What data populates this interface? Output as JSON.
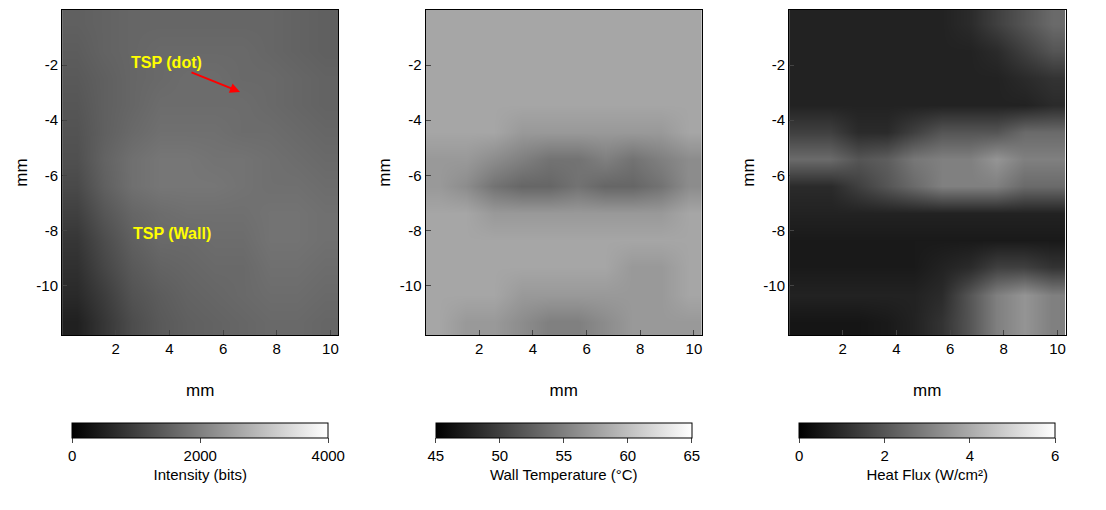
{
  "chart_data": [
    {
      "type": "heatmap",
      "color": "gray",
      "xlabel": "mm",
      "ylabel": "mm",
      "xlim": [
        0,
        10.3
      ],
      "xticks": [
        2,
        4,
        6,
        8,
        10
      ],
      "ylim": [
        -11.8,
        0
      ],
      "yticks": [
        -2,
        -4,
        -6,
        -8,
        -10
      ],
      "x": [
        0.52,
        1.55,
        2.58,
        3.61,
        4.64,
        5.67,
        6.7,
        7.73,
        8.76,
        9.79
      ],
      "y": [
        -0.49,
        -1.48,
        -2.46,
        -3.44,
        -4.43,
        -5.41,
        -6.39,
        -7.38,
        -8.36,
        -9.34,
        -10.33,
        -11.31
      ],
      "z": [
        [
          1500,
          1550,
          1600,
          1600,
          1600,
          1600,
          1600,
          1600,
          1550,
          1500
        ],
        [
          1450,
          1550,
          1600,
          1650,
          1650,
          1650,
          1650,
          1600,
          1550,
          1500
        ],
        [
          1400,
          1500,
          1600,
          1650,
          1700,
          1700,
          1650,
          1650,
          1600,
          1550
        ],
        [
          1350,
          1500,
          1600,
          1700,
          1700,
          1700,
          1700,
          1650,
          1600,
          1550
        ],
        [
          1300,
          1500,
          1650,
          1750,
          1750,
          1750,
          1700,
          1700,
          1650,
          1600
        ],
        [
          1250,
          1550,
          1750,
          1850,
          1850,
          1800,
          1800,
          1750,
          1700,
          1650
        ],
        [
          1150,
          1500,
          1750,
          1850,
          1850,
          1850,
          1800,
          1750,
          1750,
          1700
        ],
        [
          1000,
          1350,
          1600,
          1700,
          1750,
          1750,
          1750,
          1800,
          1800,
          1750
        ],
        [
          850,
          1200,
          1500,
          1650,
          1650,
          1700,
          1700,
          1800,
          1800,
          1750
        ],
        [
          750,
          1100,
          1400,
          1550,
          1600,
          1650,
          1650,
          1750,
          1750,
          1700
        ],
        [
          650,
          950,
          1300,
          1450,
          1550,
          1600,
          1650,
          1700,
          1700,
          1650
        ],
        [
          500,
          850,
          1200,
          1400,
          1500,
          1550,
          1600,
          1650,
          1650,
          1600
        ]
      ],
      "zlim": [
        0,
        4000
      ],
      "zticks": [
        0,
        2000,
        4000
      ],
      "colorbar_title": "Intensity (bits)",
      "annotations": [
        {
          "text": "TSP (dot)",
          "x": 6.7,
          "y": -3.0,
          "ax": 3.9,
          "ay": -1.9,
          "color": "#ffff00"
        },
        {
          "text": "TSP (Wall)",
          "x": 4.1,
          "y": -8.1,
          "color": "#ffff00"
        }
      ]
    },
    {
      "type": "heatmap",
      "color": "gray",
      "xlabel": "mm",
      "ylabel": "mm",
      "xlim": [
        0,
        10.3
      ],
      "xticks": [
        2,
        4,
        6,
        8,
        10
      ],
      "ylim": [
        -11.8,
        0
      ],
      "yticks": [
        -2,
        -4,
        -6,
        -8,
        -10
      ],
      "x": [
        0.52,
        1.55,
        2.58,
        3.61,
        4.64,
        5.67,
        6.7,
        7.73,
        8.76,
        9.79
      ],
      "y": [
        -0.49,
        -1.48,
        -2.46,
        -3.44,
        -4.43,
        -5.41,
        -6.39,
        -7.38,
        -8.36,
        -9.34,
        -10.33,
        -11.31
      ],
      "z": [
        [
          58,
          58,
          58,
          58,
          58,
          58,
          58,
          58,
          58,
          58
        ],
        [
          58,
          58,
          58,
          58,
          58,
          58,
          58,
          58,
          58,
          58
        ],
        [
          58,
          58,
          58,
          58,
          58,
          58,
          58,
          58,
          58,
          58
        ],
        [
          58,
          58,
          58,
          58,
          58,
          58,
          58,
          58,
          58,
          58
        ],
        [
          58,
          58,
          58,
          57,
          57,
          57,
          57,
          57,
          57,
          58
        ],
        [
          57,
          57,
          56,
          55,
          54,
          54,
          55,
          54,
          55,
          56
        ],
        [
          57,
          56,
          54,
          53,
          53,
          54,
          53,
          53,
          54,
          56
        ],
        [
          58,
          58,
          57,
          57,
          57,
          57,
          57,
          57,
          57,
          58
        ],
        [
          58,
          58,
          58,
          58,
          58,
          58,
          58,
          58,
          58,
          58
        ],
        [
          58,
          58,
          58,
          58,
          58,
          58,
          58,
          57,
          57,
          58
        ],
        [
          58,
          58,
          58,
          57,
          57,
          57,
          57,
          57,
          57,
          58
        ],
        [
          58,
          57,
          57,
          56,
          55,
          55,
          56,
          57,
          57,
          57
        ]
      ],
      "zlim": [
        45,
        65
      ],
      "zticks": [
        45,
        50,
        55,
        60,
        65
      ],
      "colorbar_title": "Wall Temperature (°C)"
    },
    {
      "type": "heatmap",
      "color": "gray",
      "xlabel": "mm",
      "ylabel": "mm",
      "xlim": [
        0,
        10.3
      ],
      "xticks": [
        2,
        4,
        6,
        8,
        10
      ],
      "ylim": [
        -11.8,
        0
      ],
      "yticks": [
        -2,
        -4,
        -6,
        -8,
        -10
      ],
      "x": [
        0.52,
        1.55,
        2.58,
        3.61,
        4.64,
        5.67,
        6.7,
        7.73,
        8.76,
        9.79
      ],
      "y": [
        -0.49,
        -1.48,
        -2.46,
        -3.44,
        -4.43,
        -5.41,
        -6.39,
        -7.38,
        -8.36,
        -9.34,
        -10.33,
        -11.31
      ],
      "z": [
        [
          0.8,
          0.8,
          0.8,
          0.8,
          0.8,
          0.8,
          1.0,
          1.5,
          2.0,
          2.5
        ],
        [
          0.8,
          0.8,
          0.8,
          0.8,
          0.8,
          0.8,
          0.8,
          1.0,
          1.5,
          2.0
        ],
        [
          0.8,
          0.8,
          0.8,
          0.8,
          0.8,
          0.8,
          0.8,
          0.8,
          1.0,
          1.2
        ],
        [
          0.8,
          0.8,
          0.8,
          0.8,
          0.8,
          0.8,
          0.8,
          0.8,
          0.8,
          1.0
        ],
        [
          1.5,
          1.5,
          1.0,
          1.0,
          1.5,
          2.0,
          2.0,
          2.0,
          2.5,
          2.5
        ],
        [
          2.5,
          2.5,
          2.0,
          2.2,
          2.8,
          3.0,
          3.0,
          3.5,
          3.0,
          3.0
        ],
        [
          1.0,
          1.0,
          1.5,
          2.0,
          2.5,
          3.0,
          3.0,
          3.0,
          2.5,
          2.5
        ],
        [
          0.8,
          0.8,
          0.8,
          0.8,
          0.8,
          0.8,
          0.8,
          0.8,
          0.8,
          0.8
        ],
        [
          0.6,
          0.6,
          0.6,
          0.6,
          0.6,
          0.6,
          0.6,
          0.6,
          0.6,
          0.6
        ],
        [
          0.6,
          0.6,
          0.6,
          0.6,
          0.6,
          0.8,
          1.0,
          1.5,
          1.5,
          1.2
        ],
        [
          0.8,
          0.8,
          0.8,
          0.8,
          0.8,
          1.0,
          2.0,
          3.0,
          3.5,
          3.0
        ],
        [
          0.5,
          0.5,
          0.5,
          0.6,
          0.8,
          1.2,
          2.0,
          3.0,
          3.5,
          3.0
        ]
      ],
      "zlim": [
        0,
        6
      ],
      "zticks": [
        0,
        2,
        4,
        6
      ],
      "colorbar_title": "Heat Flux (W/cm²)"
    }
  ]
}
